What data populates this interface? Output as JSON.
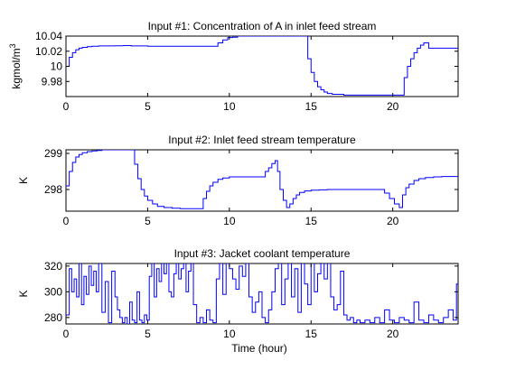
{
  "figure": {
    "xlabel": "Time (hour)"
  },
  "chart_data": [
    {
      "type": "line",
      "title": "Input #1: Concentration of A in inlet feed stream",
      "ylabel_base": "kgmol/m",
      "ylabel_sup": "3",
      "xlim": [
        0,
        24
      ],
      "ylim": [
        9.96,
        10.04
      ],
      "xticks": [
        0,
        5,
        10,
        15,
        20
      ],
      "xtick_labels": [
        "0",
        "5",
        "10",
        "15",
        "20"
      ],
      "yticks": [
        9.98,
        10.0,
        10.02,
        10.04
      ],
      "ytick_labels": [
        "9.98",
        "10",
        "10.02",
        "10.04"
      ],
      "color": "#0000ff",
      "step": true,
      "series": [
        {
          "x": [
            0,
            0.2,
            0.4,
            0.6,
            0.8,
            1.0,
            1.3,
            1.6,
            2.0,
            2.5,
            3.0,
            3.5,
            4.0,
            5.0,
            6.0,
            7.0,
            8.0,
            9.0,
            9.3,
            9.6,
            9.9,
            10.2,
            10.5,
            11.0,
            12.0,
            13.0,
            14.0,
            14.6,
            14.8,
            15.0,
            15.2,
            15.4,
            15.6,
            15.8,
            16.0,
            16.3,
            16.6,
            17.0,
            17.5,
            18.0,
            19.0,
            20.0,
            20.5,
            20.7,
            20.9,
            21.1,
            21.3,
            21.5,
            21.7,
            21.9,
            22.2,
            23.0,
            24.0
          ],
          "y": [
            10.0,
            10.012,
            10.018,
            10.022,
            10.024,
            10.025,
            10.026,
            10.0265,
            10.027,
            10.027,
            10.0272,
            10.0275,
            10.027,
            10.0265,
            10.0265,
            10.0265,
            10.0265,
            10.0265,
            10.031,
            10.035,
            10.038,
            10.0385,
            10.04,
            10.04,
            10.04,
            10.04,
            10.04,
            10.04,
            10.01,
            9.992,
            9.98,
            9.973,
            9.969,
            9.966,
            9.964,
            9.963,
            9.963,
            9.962,
            9.962,
            9.962,
            9.962,
            9.962,
            9.962,
            9.985,
            10.0,
            10.01,
            10.018,
            10.024,
            10.028,
            10.031,
            10.024,
            10.024,
            10.024
          ]
        }
      ]
    },
    {
      "type": "line",
      "title": "Input #2: Inlet feed stream temperature",
      "ylabel_base": "K",
      "ylabel_sup": "",
      "xlim": [
        0,
        24
      ],
      "ylim": [
        297.4,
        299.1
      ],
      "xticks": [
        0,
        5,
        10,
        15,
        20
      ],
      "xtick_labels": [
        "0",
        "5",
        "10",
        "15",
        "20"
      ],
      "yticks": [
        298,
        299
      ],
      "ytick_labels": [
        "298",
        "299"
      ],
      "color": "#0000ff",
      "step": true,
      "series": [
        {
          "x": [
            0,
            0.2,
            0.4,
            0.6,
            0.8,
            1.0,
            1.3,
            1.6,
            1.9,
            2.2,
            4.1,
            4.2,
            4.4,
            4.6,
            4.8,
            5.0,
            5.3,
            5.6,
            6.0,
            6.5,
            7.0,
            8.0,
            8.4,
            8.6,
            8.8,
            9.0,
            9.3,
            9.6,
            10.0,
            11.0,
            12.0,
            12.2,
            12.4,
            12.6,
            12.8,
            12.95,
            13.1,
            13.3,
            13.5,
            13.7,
            13.9,
            14.1,
            14.3,
            14.6,
            15.0,
            15.5,
            16.0,
            17.0,
            18.0,
            19.0,
            19.5,
            19.8,
            20.1,
            20.4,
            20.6,
            20.8,
            21.0,
            21.3,
            21.6,
            22.0,
            22.5,
            23.0,
            24.0
          ],
          "y": [
            298.1,
            298.5,
            298.75,
            298.9,
            298.97,
            299.02,
            299.05,
            299.07,
            299.08,
            299.1,
            299.1,
            298.7,
            298.3,
            298.0,
            297.82,
            297.7,
            297.6,
            297.53,
            297.5,
            297.48,
            297.47,
            297.47,
            297.75,
            297.95,
            298.1,
            298.2,
            298.28,
            298.32,
            298.35,
            298.35,
            298.35,
            298.5,
            298.6,
            298.72,
            298.8,
            298.5,
            298.0,
            297.7,
            297.5,
            297.6,
            297.75,
            297.85,
            297.92,
            297.96,
            297.98,
            297.99,
            298.0,
            298.0,
            298.0,
            298.0,
            297.9,
            297.75,
            297.6,
            297.5,
            297.85,
            298.05,
            298.15,
            298.25,
            298.3,
            298.33,
            298.35,
            298.36,
            298.36
          ]
        }
      ]
    },
    {
      "type": "line",
      "title": "Input #3: Jacket coolant temperature",
      "ylabel_base": "K",
      "ylabel_sup": "",
      "xlim": [
        0,
        24
      ],
      "ylim": [
        275,
        322
      ],
      "xticks": [
        0,
        5,
        10,
        15,
        20
      ],
      "xtick_labels": [
        "0",
        "5",
        "10",
        "15",
        "20"
      ],
      "yticks": [
        280,
        300,
        320
      ],
      "ytick_labels": [
        "280",
        "300",
        "320"
      ],
      "color": "#0000ff",
      "step": true,
      "series": [
        {
          "x": [
            0,
            0.2,
            0.35,
            0.5,
            0.65,
            0.8,
            0.95,
            1.1,
            1.25,
            1.4,
            1.55,
            1.7,
            1.85,
            2.0,
            2.2,
            2.4,
            2.6,
            2.8,
            3.0,
            3.15,
            3.3,
            3.45,
            3.6,
            3.75,
            3.9,
            4.05,
            4.2,
            4.35,
            4.5,
            4.65,
            4.8,
            4.95,
            5.1,
            5.25,
            5.4,
            5.55,
            5.7,
            5.85,
            6.0,
            6.15,
            6.3,
            6.45,
            6.6,
            6.75,
            6.9,
            7.05,
            7.2,
            7.35,
            7.5,
            7.65,
            7.8,
            8.0,
            8.2,
            8.4,
            8.6,
            8.8,
            9.0,
            9.2,
            9.4,
            9.6,
            9.8,
            10.0,
            10.2,
            10.4,
            10.6,
            10.8,
            11.0,
            11.2,
            11.4,
            11.6,
            11.8,
            12.0,
            12.2,
            12.4,
            12.6,
            12.8,
            13.0,
            13.2,
            13.4,
            13.6,
            13.8,
            14.0,
            14.2,
            14.4,
            14.6,
            14.8,
            15.0,
            15.2,
            15.4,
            15.6,
            15.8,
            16.0,
            16.2,
            16.4,
            16.6,
            16.8,
            17.0,
            17.2,
            17.4,
            17.6,
            17.8,
            18.0,
            18.3,
            18.6,
            18.9,
            19.2,
            19.5,
            19.8,
            20.1,
            20.4,
            20.7,
            21.0,
            21.3,
            21.6,
            21.9,
            22.2,
            22.5,
            22.8,
            23.1,
            23.4,
            23.7,
            23.9,
            24.0
          ],
          "y": [
            282,
            318,
            300,
            310,
            296,
            322,
            290,
            312,
            298,
            320,
            305,
            316,
            300,
            322,
            284,
            308,
            276,
            316,
            296,
            286,
            280,
            276,
            280,
            274,
            292,
            278,
            276,
            300,
            278,
            276,
            282,
            278,
            312,
            322,
            296,
            318,
            308,
            322,
            314,
            322,
            300,
            296,
            314,
            322,
            310,
            318,
            322,
            300,
            316,
            322,
            290,
            276,
            280,
            276,
            286,
            278,
            276,
            310,
            322,
            298,
            322,
            318,
            310,
            302,
            320,
            312,
            322,
            296,
            284,
            292,
            300,
            280,
            276,
            286,
            300,
            318,
            322,
            290,
            310,
            322,
            296,
            318,
            284,
            322,
            306,
            290,
            322,
            300,
            314,
            322,
            310,
            322,
            296,
            286,
            290,
            316,
            282,
            278,
            280,
            276,
            278,
            276,
            278,
            276,
            280,
            276,
            286,
            278,
            276,
            280,
            278,
            276,
            292,
            278,
            276,
            282,
            278,
            276,
            280,
            286,
            278,
            306,
            306
          ]
        }
      ]
    }
  ]
}
